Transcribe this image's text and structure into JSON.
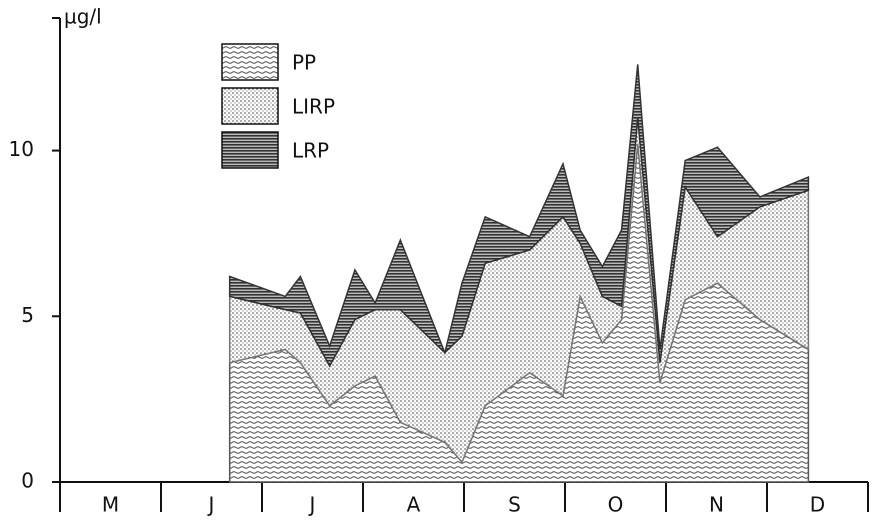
{
  "chart_data": {
    "type": "stacked-area",
    "y_label": "µg/l",
    "categories": [
      "M",
      "J",
      "J",
      "A",
      "S",
      "O",
      "N",
      "D"
    ],
    "x": [
      1.68,
      2.23,
      2.38,
      2.67,
      2.92,
      3.12,
      3.37,
      3.81,
      3.98,
      4.21,
      4.65,
      4.98,
      5.15,
      5.37,
      5.56,
      5.72,
      5.94,
      6.19,
      6.51,
      6.93,
      7.41
    ],
    "xlim": [
      0,
      8
    ],
    "xticks": [
      0,
      1,
      2,
      3,
      4,
      5,
      6,
      7,
      8
    ],
    "ylim": [
      0,
      14
    ],
    "yticks": [
      0,
      5,
      10
    ],
    "series": [
      {
        "name": "PP",
        "color": "#555555",
        "values": [
          3.6,
          4.0,
          3.6,
          2.3,
          2.9,
          3.2,
          1.8,
          1.2,
          0.6,
          2.3,
          3.3,
          2.6,
          5.6,
          4.2,
          4.9,
          10.2,
          3.0,
          5.5,
          6.0,
          4.9,
          4.0
        ]
      },
      {
        "name": "LIRP",
        "color": "#777777",
        "values": [
          2.0,
          1.2,
          1.5,
          1.2,
          2.0,
          2.0,
          3.4,
          2.7,
          3.8,
          4.3,
          3.7,
          5.4,
          1.6,
          1.4,
          0.4,
          0.8,
          0.6,
          3.4,
          1.4,
          3.4,
          4.8
        ]
      },
      {
        "name": "LRP",
        "color": "#333333",
        "values": [
          0.6,
          0.4,
          1.1,
          0.6,
          1.5,
          0.2,
          2.1,
          0.0,
          1.6,
          1.4,
          0.4,
          1.6,
          0.4,
          0.9,
          2.3,
          1.6,
          0.4,
          0.8,
          2.7,
          0.3,
          0.4
        ]
      }
    ]
  }
}
